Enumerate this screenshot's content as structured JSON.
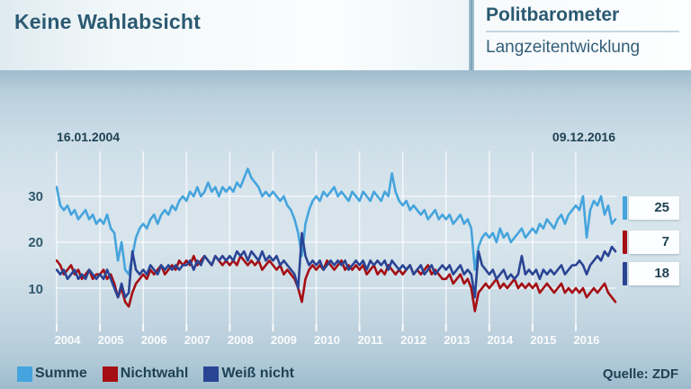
{
  "header": {
    "title": "Keine Wahlabsicht",
    "brand": "Politbarometer",
    "subtitle": "Langzeitentwicklung"
  },
  "dates": {
    "start": "16.01.2004",
    "end": "09.12.2016"
  },
  "source": "Quelle: ZDF",
  "value_boxes": [
    {
      "value": "25",
      "color": "#45a4dd"
    },
    {
      "value": "7",
      "color": "#a50e13"
    },
    {
      "value": "18",
      "color": "#2a4494"
    }
  ],
  "legend": [
    {
      "label": "Summe",
      "color": "#45a4dd"
    },
    {
      "label": "Nichtwahl",
      "color": "#a50e13"
    },
    {
      "label": "Weiß nicht",
      "color": "#2a4494"
    }
  ],
  "chart_data": {
    "type": "line",
    "title": "Keine Wahlabsicht",
    "xlabel": "",
    "ylabel": "",
    "x_range_labels": [
      "16.01.2004",
      "09.12.2016"
    ],
    "x_ticks": [
      2004,
      2005,
      2006,
      2007,
      2008,
      2009,
      2010,
      2011,
      2012,
      2013,
      2014,
      2015,
      2016
    ],
    "y_ticks": [
      30,
      20,
      10
    ],
    "ylim": [
      2,
      38
    ],
    "grid": true,
    "legend_position": "bottom",
    "x_monthly_start": "2004-01",
    "x_monthly_end": "2016-12",
    "series": [
      {
        "name": "Summe",
        "color": "#45a4dd",
        "end_value": 25,
        "values": [
          32,
          28,
          27,
          28,
          26,
          27,
          25,
          26,
          27,
          25,
          26,
          24,
          25,
          24,
          26,
          23,
          22,
          16,
          20,
          14,
          13,
          17,
          21,
          23,
          24,
          23,
          25,
          26,
          24,
          26,
          27,
          26,
          28,
          27,
          29,
          30,
          29,
          31,
          30,
          32,
          30,
          31,
          33,
          31,
          32,
          30,
          32,
          31,
          32,
          31,
          33,
          32,
          34,
          36,
          34,
          33,
          32,
          30,
          31,
          30,
          31,
          30,
          29,
          30,
          28,
          27,
          25,
          22,
          17,
          24,
          27,
          29,
          30,
          29,
          31,
          30,
          31,
          32,
          30,
          31,
          30,
          29,
          31,
          30,
          29,
          31,
          30,
          29,
          31,
          30,
          29,
          31,
          30,
          35,
          31,
          29,
          28,
          29,
          27,
          28,
          27,
          26,
          27,
          25,
          26,
          27,
          25,
          26,
          25,
          26,
          24,
          25,
          26,
          24,
          25,
          23,
          14,
          19,
          21,
          22,
          21,
          22,
          20,
          23,
          21,
          22,
          20,
          21,
          22,
          23,
          21,
          22,
          23,
          22,
          24,
          23,
          25,
          24,
          23,
          25,
          26,
          24,
          26,
          27,
          28,
          27,
          30,
          21,
          27,
          29,
          28,
          30,
          26,
          28,
          24,
          25
        ]
      },
      {
        "name": "Nichtwahl",
        "color": "#a50e13",
        "end_value": 7,
        "values": [
          16,
          15,
          13,
          14,
          15,
          13,
          14,
          12,
          13,
          14,
          12,
          13,
          13,
          14,
          12,
          13,
          11,
          8,
          10,
          7,
          6,
          9,
          11,
          12,
          13,
          12,
          14,
          13,
          14,
          15,
          13,
          14,
          15,
          14,
          16,
          15,
          16,
          15,
          17,
          15,
          16,
          17,
          16,
          15,
          17,
          16,
          15,
          16,
          15,
          16,
          15,
          17,
          16,
          15,
          16,
          15,
          16,
          14,
          15,
          16,
          15,
          14,
          15,
          13,
          14,
          13,
          12,
          10,
          7,
          12,
          14,
          15,
          14,
          15,
          14,
          16,
          15,
          14,
          15,
          16,
          14,
          15,
          14,
          15,
          14,
          15,
          13,
          14,
          15,
          13,
          14,
          13,
          15,
          14,
          13,
          14,
          13,
          14,
          15,
          13,
          14,
          13,
          14,
          15,
          13,
          14,
          13,
          12,
          12,
          13,
          11,
          12,
          13,
          11,
          12,
          10,
          5,
          9,
          10,
          11,
          10,
          11,
          12,
          10,
          11,
          10,
          11,
          12,
          10,
          11,
          10,
          11,
          10,
          11,
          9,
          10,
          11,
          10,
          9,
          10,
          11,
          9,
          10,
          9,
          10,
          9,
          10,
          8,
          9,
          10,
          9,
          10,
          11,
          9,
          8,
          7
        ]
      },
      {
        "name": "Weiß nicht",
        "color": "#2a4494",
        "end_value": 18,
        "values": [
          14,
          13,
          14,
          12,
          13,
          14,
          12,
          13,
          12,
          14,
          13,
          12,
          13,
          12,
          14,
          12,
          10,
          8,
          11,
          8,
          9,
          18,
          14,
          13,
          14,
          13,
          15,
          14,
          13,
          15,
          14,
          15,
          14,
          15,
          14,
          15,
          15,
          16,
          14,
          16,
          15,
          17,
          16,
          15,
          17,
          16,
          17,
          16,
          17,
          16,
          18,
          17,
          18,
          16,
          18,
          17,
          16,
          18,
          16,
          17,
          16,
          17,
          15,
          16,
          15,
          14,
          13,
          10,
          22,
          17,
          15,
          16,
          15,
          16,
          14,
          15,
          16,
          15,
          16,
          15,
          16,
          14,
          15,
          16,
          15,
          16,
          14,
          16,
          15,
          16,
          15,
          16,
          14,
          16,
          15,
          14,
          15,
          14,
          15,
          13,
          14,
          15,
          13,
          14,
          15,
          13,
          14,
          15,
          14,
          15,
          13,
          14,
          15,
          13,
          14,
          13,
          8,
          18,
          15,
          14,
          13,
          14,
          12,
          13,
          14,
          12,
          13,
          12,
          13,
          17,
          13,
          14,
          13,
          14,
          12,
          14,
          13,
          14,
          13,
          14,
          15,
          13,
          14,
          15,
          15,
          16,
          15,
          13,
          15,
          16,
          17,
          16,
          18,
          17,
          19,
          18
        ]
      }
    ]
  }
}
